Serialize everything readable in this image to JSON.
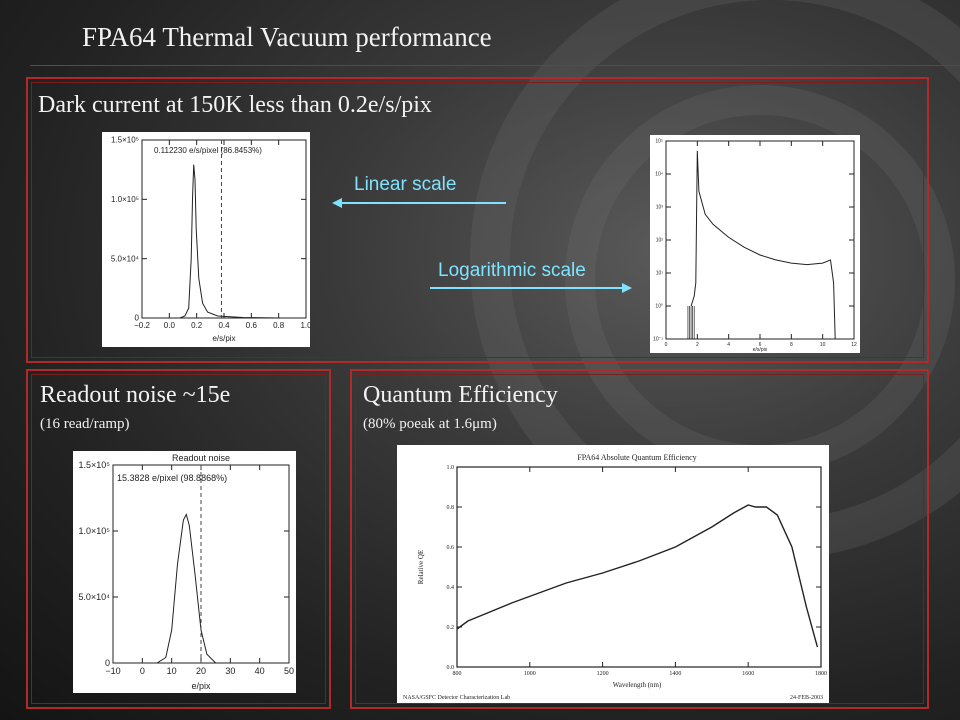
{
  "slide": {
    "title": "FPA64 Thermal Vacuum performance"
  },
  "dark_current": {
    "heading": "Dark current at 150K less than 0.2e/s/pix",
    "linear_label": "Linear scale",
    "log_label": "Logarithmic scale",
    "linear_plot": {
      "annotation": "0.112230 e/s/pixel (86.8453%)",
      "xlabel": "e/s/pix",
      "yticks": [
        "0",
        "5.0×10⁴",
        "1.0×10⁵",
        "1.5×10⁵"
      ],
      "xticks": [
        "−0.2",
        "0.0",
        "0.2",
        "0.4",
        "0.6",
        "0.8",
        "1.0"
      ]
    },
    "log_plot": {
      "xlabel": "e/s/pix",
      "yticks": [
        "10⁻¹",
        "10⁰",
        "10¹",
        "10²",
        "10³",
        "10⁴",
        "10⁵"
      ],
      "xticks": [
        "0",
        "2",
        "4",
        "6",
        "8",
        "10",
        "12"
      ]
    }
  },
  "readout_noise": {
    "heading": "Readout noise ~15e",
    "sub": "(16 read/ramp)",
    "plot": {
      "title": "Readout noise",
      "annotation": "15.3828 e/pixel (98.8868%)",
      "xlabel": "e/pix",
      "yticks": [
        "0",
        "5.0×10⁴",
        "1.0×10⁵",
        "1.5×10⁵"
      ],
      "xticks": [
        "−10",
        "0",
        "10",
        "20",
        "30",
        "40",
        "50"
      ]
    }
  },
  "quantum_efficiency": {
    "heading": "Quantum Efficiency",
    "sub": "(80% poeak at 1.6μm)",
    "plot": {
      "title": "FPA64 Absolute Quantum Efficiency",
      "xlabel": "Wavelength (nm)",
      "ylabel": "Relative QE",
      "footer_left": "NASA/GSFC Detector Characterization Lab",
      "footer_right": "24-FEB-2003",
      "yticks": [
        "0.0",
        "0.2",
        "0.4",
        "0.6",
        "0.8",
        "1.0"
      ],
      "xticks": [
        "800",
        "1000",
        "1200",
        "1400",
        "1600",
        "1800"
      ]
    }
  },
  "chart_data": [
    {
      "type": "line",
      "title": "",
      "xlabel": "e/s/pix",
      "xlim": [
        -0.3,
        1.0
      ],
      "ylim": [
        0,
        180000
      ],
      "x": [
        -0.3,
        0.0,
        0.04,
        0.07,
        0.09,
        0.1,
        0.11,
        0.12,
        0.13,
        0.15,
        0.18,
        0.22,
        0.3,
        0.5,
        0.8,
        1.0
      ],
      "y": [
        0,
        0,
        2000,
        10000,
        60000,
        120000,
        155000,
        140000,
        90000,
        40000,
        15000,
        6000,
        2000,
        500,
        0,
        0
      ],
      "vline_x": 0.33
    },
    {
      "type": "line",
      "title": "",
      "xlabel": "e/s/pix",
      "yscale": "log",
      "xlim": [
        0,
        12
      ],
      "ylim": [
        0.1,
        100000
      ],
      "x": [
        1.6,
        1.8,
        1.9,
        2.0,
        2.1,
        2.5,
        3,
        4,
        5,
        6,
        7,
        8,
        9,
        10,
        10.5,
        10.7,
        10.8
      ],
      "y": [
        1,
        2,
        5,
        50000,
        3000,
        600,
        300,
        120,
        60,
        35,
        25,
        20,
        18,
        20,
        25,
        5,
        0.1
      ]
    },
    {
      "type": "line",
      "title": "Readout noise",
      "xlabel": "e/pix",
      "xlim": [
        -10,
        50
      ],
      "ylim": [
        0,
        180000
      ],
      "x": [
        -10,
        5,
        8,
        10,
        12,
        14,
        15,
        16,
        18,
        20,
        22,
        25,
        50
      ],
      "y": [
        0,
        0,
        5000,
        30000,
        90000,
        130000,
        135000,
        125000,
        80000,
        30000,
        8000,
        0,
        0
      ],
      "vline_x": 20
    },
    {
      "type": "line",
      "title": "FPA64 Absolute Quantum Efficiency",
      "xlabel": "Wavelength (nm)",
      "ylabel": "Relative QE",
      "xlim": [
        800,
        1800
      ],
      "ylim": [
        0,
        1.0
      ],
      "x": [
        800,
        830,
        870,
        950,
        1100,
        1200,
        1300,
        1400,
        1500,
        1560,
        1600,
        1620,
        1650,
        1680,
        1720,
        1760,
        1790
      ],
      "y": [
        0.19,
        0.23,
        0.26,
        0.32,
        0.42,
        0.47,
        0.53,
        0.6,
        0.7,
        0.77,
        0.81,
        0.8,
        0.8,
        0.76,
        0.6,
        0.3,
        0.1
      ]
    }
  ]
}
